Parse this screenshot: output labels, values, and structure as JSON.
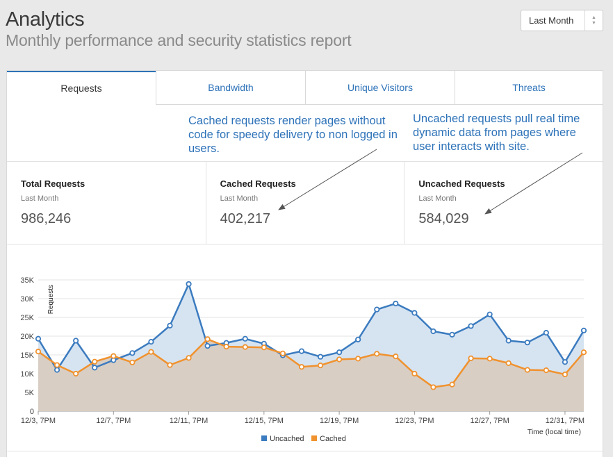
{
  "header": {
    "title": "Analytics",
    "subtitle": "Monthly performance and security statistics report",
    "range_select": {
      "value": "Last Month"
    }
  },
  "tabs": [
    {
      "label": "Requests",
      "active": true
    },
    {
      "label": "Bandwidth",
      "active": false
    },
    {
      "label": "Unique Visitors",
      "active": false
    },
    {
      "label": "Threats",
      "active": false
    }
  ],
  "notes": {
    "cached": "Cached requests render pages without code for speedy delivery to non logged in users.",
    "uncached": "Uncached requests pull real time dynamic data from pages where user interacts with site."
  },
  "stats": [
    {
      "label": "Total Requests",
      "period": "Last Month",
      "value": "986,246"
    },
    {
      "label": "Cached Requests",
      "period": "Last Month",
      "value": "402,217"
    },
    {
      "label": "Uncached Requests",
      "period": "Last Month",
      "value": "584,029"
    }
  ],
  "colors": {
    "accent": "#2d72b8",
    "uncached": "#3b7bbf",
    "cached": "#f0922e",
    "uncached_fill": "#d6e4f2",
    "cached_fill": "#d9cec4"
  },
  "chart_data": {
    "type": "area",
    "ylabel": "Requests",
    "xlabel": "Time (local time)",
    "ylim": [
      0,
      35000
    ],
    "y_ticks": [
      "0",
      "5K",
      "10K",
      "15K",
      "20K",
      "25K",
      "30K",
      "35K"
    ],
    "x_ticks": [
      "12/3, 7PM",
      "12/7, 7PM",
      "12/11, 7PM",
      "12/15, 7PM",
      "12/19, 7PM",
      "12/23, 7PM",
      "12/27, 7PM",
      "12/31, 7PM"
    ],
    "grid": true,
    "legend": "bottom",
    "series": [
      {
        "name": "Uncached",
        "values": [
          19300,
          11000,
          18800,
          11600,
          13600,
          15500,
          18500,
          22800,
          33900,
          17400,
          18200,
          19300,
          18000,
          14900,
          16000,
          14500,
          15700,
          19100,
          27100,
          28700,
          26200,
          21300,
          20400,
          22700,
          25800,
          18800,
          18300,
          20900,
          13100,
          21500
        ]
      },
      {
        "name": "Cached",
        "values": [
          15900,
          12300,
          10000,
          13200,
          14700,
          13000,
          15800,
          12300,
          14200,
          19200,
          17200,
          17100,
          17000,
          15400,
          11800,
          12200,
          13800,
          14000,
          15300,
          14600,
          10000,
          6400,
          7100,
          14100,
          14000,
          12800,
          11000,
          10900,
          9800,
          15700
        ]
      }
    ]
  }
}
